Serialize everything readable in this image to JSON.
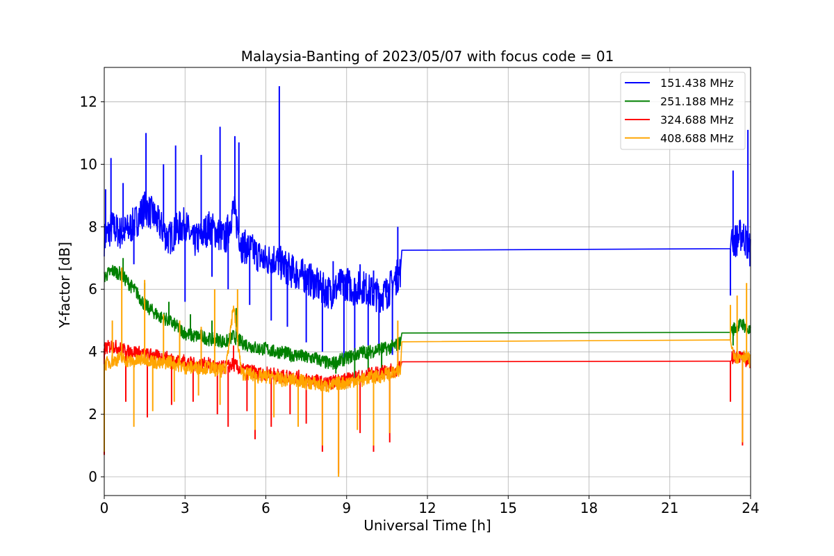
{
  "chart_data": {
    "type": "line",
    "title": "Malaysia-Banting of 2023/05/07 with focus code = 01",
    "xlabel": "Universal Time [h]",
    "ylabel": "Y-factor [dB]",
    "xlim": [
      0,
      24
    ],
    "ylim": [
      -0.6,
      13.1
    ],
    "xticks": [
      0,
      3,
      6,
      9,
      12,
      15,
      18,
      21,
      24
    ],
    "yticks": [
      0,
      2,
      4,
      6,
      8,
      10,
      12
    ],
    "grid": true,
    "legend_position": "top-right",
    "series": [
      {
        "name": "151.438 MHz",
        "color": "#0000ff",
        "x": [
          0,
          0.3,
          0.6,
          0.9,
          1.2,
          1.5,
          1.8,
          2.1,
          2.4,
          2.7,
          3.0,
          3.3,
          3.6,
          3.9,
          4.2,
          4.5,
          4.8,
          5.1,
          5.4,
          5.7,
          6.0,
          6.3,
          6.6,
          6.9,
          7.2,
          7.5,
          7.8,
          8.1,
          8.4,
          8.7,
          9.0,
          9.3,
          9.6,
          9.9,
          10.2,
          10.5,
          10.8,
          11.0,
          11.05,
          23.25,
          23.3,
          23.5,
          23.7,
          23.9,
          24.0
        ],
        "y": [
          7.6,
          8.0,
          7.8,
          7.9,
          8.2,
          8.6,
          8.4,
          8.0,
          7.6,
          7.9,
          8.1,
          7.5,
          7.7,
          8.0,
          7.8,
          7.6,
          8.6,
          7.4,
          7.3,
          7.1,
          6.9,
          7.0,
          6.8,
          6.6,
          6.5,
          6.4,
          6.2,
          6.0,
          5.9,
          6.1,
          6.2,
          6.0,
          6.1,
          5.9,
          5.8,
          5.9,
          6.3,
          6.6,
          7.25,
          7.3,
          7.5,
          7.6,
          7.8,
          7.4,
          7.2
        ],
        "spikes": [
          [
            0.05,
            9.2
          ],
          [
            0.25,
            10.2
          ],
          [
            0.7,
            9.4
          ],
          [
            1.55,
            11.0
          ],
          [
            2.2,
            10.0
          ],
          [
            2.65,
            10.6
          ],
          [
            3.6,
            10.3
          ],
          [
            4.3,
            11.2
          ],
          [
            4.85,
            10.9
          ],
          [
            5.0,
            10.7
          ],
          [
            6.5,
            12.5
          ],
          [
            8.5,
            6.9
          ],
          [
            9.5,
            6.8
          ],
          [
            10.0,
            6.6
          ],
          [
            10.5,
            6.3
          ],
          [
            10.9,
            8.0
          ],
          [
            23.35,
            9.8
          ],
          [
            23.9,
            11.1
          ]
        ],
        "dips": [
          [
            1.1,
            6.8
          ],
          [
            2.3,
            7.3
          ],
          [
            3.0,
            5.6
          ],
          [
            4.0,
            6.4
          ],
          [
            4.6,
            6.0
          ],
          [
            5.4,
            5.5
          ],
          [
            6.2,
            5.0
          ],
          [
            6.8,
            4.8
          ],
          [
            7.5,
            4.3
          ],
          [
            8.1,
            4.0
          ],
          [
            8.9,
            3.8
          ],
          [
            9.3,
            4.0
          ],
          [
            9.8,
            4.2
          ],
          [
            10.2,
            4.1
          ],
          [
            10.7,
            3.9
          ],
          [
            23.25,
            5.8
          ]
        ]
      },
      {
        "name": "251.188 MHz",
        "color": "#008000",
        "x": [
          0,
          0.3,
          0.6,
          0.9,
          1.2,
          1.5,
          1.8,
          2.1,
          2.4,
          2.7,
          3.0,
          3.3,
          3.6,
          3.9,
          4.2,
          4.5,
          4.8,
          5.1,
          5.4,
          5.7,
          6.0,
          6.3,
          6.6,
          6.9,
          7.2,
          7.5,
          7.8,
          8.1,
          8.4,
          8.7,
          9.0,
          9.3,
          9.6,
          9.9,
          10.2,
          10.5,
          10.8,
          11.0,
          11.05,
          23.25,
          23.3,
          23.5,
          23.7,
          23.9,
          24.0
        ],
        "y": [
          6.4,
          6.6,
          6.5,
          6.2,
          5.9,
          5.5,
          5.3,
          5.1,
          5.0,
          4.8,
          4.6,
          4.5,
          4.5,
          4.4,
          4.4,
          4.3,
          4.5,
          4.3,
          4.2,
          4.1,
          4.1,
          4.0,
          4.0,
          3.9,
          3.9,
          3.8,
          3.8,
          3.7,
          3.6,
          3.7,
          3.8,
          3.9,
          4.0,
          4.0,
          4.1,
          4.1,
          4.2,
          4.3,
          4.6,
          4.62,
          4.7,
          4.8,
          4.9,
          4.7,
          4.6
        ],
        "spikes": [
          [
            0.7,
            7.0
          ],
          [
            1.5,
            6.2
          ],
          [
            2.4,
            5.6
          ],
          [
            3.2,
            5.2
          ],
          [
            4.0,
            5.0
          ],
          [
            4.9,
            5.4
          ]
        ],
        "dips": [
          [
            8.6,
            3.3
          ],
          [
            9.3,
            3.1
          ],
          [
            9.8,
            3.2
          ],
          [
            10.3,
            3.4
          ],
          [
            23.35,
            4.2
          ]
        ]
      },
      {
        "name": "324.688 MHz",
        "color": "#ff0000",
        "x": [
          0,
          0.3,
          0.6,
          0.9,
          1.2,
          1.5,
          1.8,
          2.1,
          2.4,
          2.7,
          3.0,
          3.3,
          3.6,
          3.9,
          4.2,
          4.5,
          4.8,
          5.1,
          5.4,
          5.7,
          6.0,
          6.3,
          6.6,
          6.9,
          7.2,
          7.5,
          7.8,
          8.1,
          8.4,
          8.7,
          9.0,
          9.3,
          9.6,
          9.9,
          10.2,
          10.5,
          10.8,
          11.0,
          11.05,
          23.25,
          23.3,
          23.5,
          23.7,
          23.9,
          24.0
        ],
        "y": [
          4.1,
          4.2,
          4.1,
          4.0,
          4.0,
          3.9,
          3.9,
          3.8,
          3.8,
          3.7,
          3.7,
          3.6,
          3.6,
          3.6,
          3.5,
          3.5,
          3.6,
          3.4,
          3.4,
          3.3,
          3.3,
          3.3,
          3.2,
          3.2,
          3.2,
          3.1,
          3.1,
          3.0,
          3.0,
          3.1,
          3.1,
          3.2,
          3.2,
          3.3,
          3.3,
          3.4,
          3.4,
          3.5,
          3.68,
          3.7,
          3.8,
          3.9,
          3.8,
          3.7,
          3.7
        ],
        "spikes": [
          [
            4.8,
            4.2
          ],
          [
            10.9,
            4.4
          ]
        ],
        "dips": [
          [
            0.0,
            0.7
          ],
          [
            0.8,
            2.4
          ],
          [
            1.6,
            1.9
          ],
          [
            2.5,
            2.3
          ],
          [
            3.3,
            2.4
          ],
          [
            4.2,
            2.0
          ],
          [
            4.6,
            1.6
          ],
          [
            5.3,
            2.1
          ],
          [
            5.6,
            1.2
          ],
          [
            6.2,
            1.6
          ],
          [
            6.9,
            2.0
          ],
          [
            7.5,
            1.7
          ],
          [
            8.1,
            0.8
          ],
          [
            8.7,
            0.1
          ],
          [
            9.5,
            1.4
          ],
          [
            10.0,
            0.8
          ],
          [
            10.6,
            1.1
          ],
          [
            23.25,
            2.4
          ],
          [
            23.7,
            1.0
          ]
        ]
      },
      {
        "name": "408.688 MHz",
        "color": "#ffa500",
        "x": [
          0,
          0.3,
          0.6,
          0.9,
          1.2,
          1.5,
          1.8,
          2.1,
          2.4,
          2.7,
          3.0,
          3.3,
          3.6,
          3.9,
          4.2,
          4.5,
          4.8,
          5.1,
          5.4,
          5.7,
          6.0,
          6.3,
          6.6,
          6.9,
          7.2,
          7.5,
          7.8,
          8.1,
          8.4,
          8.7,
          9.0,
          9.3,
          9.6,
          9.9,
          10.2,
          10.5,
          10.8,
          11.0,
          11.05,
          23.25,
          23.3,
          23.5,
          23.7,
          23.9,
          24.0
        ],
        "y": [
          3.6,
          3.7,
          3.8,
          3.7,
          3.7,
          3.8,
          3.7,
          3.6,
          3.7,
          3.6,
          3.5,
          3.5,
          3.5,
          3.5,
          3.4,
          3.4,
          5.5,
          3.3,
          3.3,
          3.2,
          3.2,
          3.2,
          3.1,
          3.1,
          3.1,
          3.0,
          3.0,
          2.9,
          2.9,
          3.0,
          3.0,
          3.1,
          3.1,
          3.2,
          3.2,
          3.3,
          3.3,
          3.4,
          4.32,
          4.38,
          4.1,
          3.8,
          3.9,
          3.8,
          3.7
        ],
        "spikes": [
          [
            0.3,
            5.0
          ],
          [
            0.65,
            6.7
          ],
          [
            1.5,
            6.3
          ],
          [
            2.2,
            5.2
          ],
          [
            2.8,
            5.0
          ],
          [
            3.6,
            4.8
          ],
          [
            4.1,
            6.0
          ],
          [
            4.95,
            6.0
          ],
          [
            10.9,
            5.0
          ],
          [
            23.25,
            5.5
          ],
          [
            23.5,
            5.8
          ],
          [
            23.85,
            6.2
          ]
        ],
        "dips": [
          [
            0.0,
            0.8
          ],
          [
            1.1,
            1.6
          ],
          [
            1.8,
            2.1
          ],
          [
            2.6,
            2.4
          ],
          [
            3.5,
            2.6
          ],
          [
            4.3,
            2.3
          ],
          [
            5.6,
            1.5
          ],
          [
            6.3,
            1.9
          ],
          [
            7.2,
            1.6
          ],
          [
            8.1,
            1.0
          ],
          [
            8.7,
            0.0
          ],
          [
            9.4,
            1.5
          ],
          [
            10.0,
            1.0
          ],
          [
            10.6,
            1.4
          ],
          [
            23.7,
            1.1
          ]
        ]
      }
    ]
  }
}
